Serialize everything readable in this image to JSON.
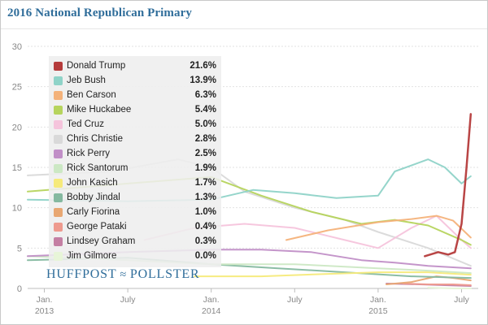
{
  "title": "2016 National Republican Primary",
  "brand": {
    "left": "HUFFPOST",
    "icon": "pollster-swoosh-icon",
    "right": "POLLSTER"
  },
  "chart_data": {
    "type": "line",
    "title": "2016 National Republican Primary",
    "xlabel": "",
    "ylabel": "",
    "ylim": [
      0,
      30
    ],
    "yticks": [
      "0",
      "5",
      "10",
      "15",
      "20",
      "25",
      "30"
    ],
    "xlim": [
      2012.9,
      2015.6
    ],
    "xticks": [
      {
        "x": 2013.0,
        "line1": "Jan.",
        "line2": "2013"
      },
      {
        "x": 2013.5,
        "line1": "July",
        "line2": ""
      },
      {
        "x": 2014.0,
        "line1": "Jan.",
        "line2": "2014"
      },
      {
        "x": 2014.5,
        "line1": "July",
        "line2": ""
      },
      {
        "x": 2015.0,
        "line1": "Jan.",
        "line2": "2015"
      },
      {
        "x": 2015.5,
        "line1": "July",
        "line2": ""
      }
    ],
    "series": [
      {
        "name": "Donald Trump",
        "label": "21.6%",
        "color": "#b53b3b",
        "x": [
          2015.28,
          2015.36,
          2015.42,
          2015.46,
          2015.5,
          2015.53,
          2015.555
        ],
        "y": [
          4.0,
          4.5,
          4.2,
          4.5,
          8.0,
          15.0,
          21.6
        ]
      },
      {
        "name": "Jeb Bush",
        "label": "13.9%",
        "color": "#8fd3c8",
        "x": [
          2012.9,
          2013.5,
          2014.0,
          2014.25,
          2014.5,
          2014.75,
          2015.0,
          2015.1,
          2015.3,
          2015.4,
          2015.5,
          2015.555
        ],
        "y": [
          11.0,
          10.8,
          11.0,
          12.2,
          11.8,
          11.2,
          11.5,
          14.5,
          16.0,
          15.0,
          13.0,
          13.9
        ]
      },
      {
        "name": "Ben Carson",
        "label": "6.3%",
        "color": "#f4b27a",
        "x": [
          2014.45,
          2014.7,
          2015.0,
          2015.2,
          2015.35,
          2015.45,
          2015.555
        ],
        "y": [
          6.0,
          7.2,
          8.2,
          8.6,
          9.0,
          8.4,
          6.3
        ]
      },
      {
        "name": "Mike Huckabee",
        "label": "5.4%",
        "color": "#b6d45d",
        "x": [
          2012.9,
          2013.5,
          2014.0,
          2014.3,
          2014.6,
          2014.9,
          2015.1,
          2015.3,
          2015.5,
          2015.555
        ],
        "y": [
          12.0,
          13.0,
          13.8,
          11.5,
          9.5,
          8.0,
          8.5,
          7.8,
          6.0,
          5.4
        ]
      },
      {
        "name": "Ted Cruz",
        "label": "5.0%",
        "color": "#f5c4dc",
        "x": [
          2013.6,
          2013.9,
          2014.2,
          2014.5,
          2014.8,
          2015.0,
          2015.2,
          2015.35,
          2015.5,
          2015.555
        ],
        "y": [
          6.0,
          7.5,
          8.0,
          7.5,
          6.0,
          5.0,
          7.5,
          9.0,
          6.0,
          5.0
        ]
      },
      {
        "name": "Chris Christie",
        "label": "2.8%",
        "color": "#d9d9d9",
        "x": [
          2012.9,
          2013.4,
          2013.8,
          2014.0,
          2014.2,
          2014.5,
          2014.8,
          2015.0,
          2015.3,
          2015.555
        ],
        "y": [
          14.0,
          14.5,
          16.0,
          15.0,
          12.0,
          10.0,
          8.5,
          7.0,
          5.0,
          2.8
        ]
      },
      {
        "name": "Rick Perry",
        "label": "2.5%",
        "color": "#c18fc7",
        "x": [
          2012.9,
          2013.5,
          2014.0,
          2014.3,
          2014.6,
          2014.9,
          2015.1,
          2015.3,
          2015.555
        ],
        "y": [
          4.0,
          4.5,
          4.8,
          4.8,
          4.5,
          3.5,
          3.2,
          2.8,
          2.5
        ]
      },
      {
        "name": "Rick Santorum",
        "label": "1.9%",
        "color": "#cce8c4",
        "x": [
          2012.9,
          2013.5,
          2014.0,
          2014.5,
          2015.0,
          2015.3,
          2015.555
        ],
        "y": [
          4.0,
          3.5,
          3.0,
          3.0,
          2.5,
          2.2,
          1.9
        ]
      },
      {
        "name": "John Kasich",
        "label": "1.7%",
        "color": "#f6ea7a",
        "x": [
          2013.9,
          2014.3,
          2014.7,
          2015.0,
          2015.3,
          2015.555
        ],
        "y": [
          1.5,
          1.5,
          1.8,
          2.0,
          2.0,
          1.7
        ]
      },
      {
        "name": "Bobby Jindal",
        "label": "1.3%",
        "color": "#85b9a0",
        "x": [
          2012.9,
          2013.5,
          2014.0,
          2014.4,
          2014.8,
          2015.2,
          2015.555
        ],
        "y": [
          3.5,
          3.8,
          3.0,
          2.5,
          2.0,
          1.5,
          1.3
        ]
      },
      {
        "name": "Carly Fiorina",
        "label": "1.0%",
        "color": "#e8a772",
        "x": [
          2015.05,
          2015.2,
          2015.35,
          2015.45,
          2015.555
        ],
        "y": [
          0.5,
          0.8,
          1.5,
          1.3,
          1.0
        ]
      },
      {
        "name": "George Pataki",
        "label": "0.4%",
        "color": "#ee9a8e",
        "x": [
          2015.15,
          2015.3,
          2015.45,
          2015.555
        ],
        "y": [
          0.6,
          0.5,
          0.5,
          0.4
        ]
      },
      {
        "name": "Lindsey Graham",
        "label": "0.3%",
        "color": "#c47fa3",
        "x": [
          2015.05,
          2015.25,
          2015.4,
          2015.555
        ],
        "y": [
          0.6,
          0.5,
          0.4,
          0.3
        ]
      },
      {
        "name": "Jim Gilmore",
        "label": "0.0%",
        "color": "#e7f5d8",
        "x": [
          2015.3,
          2015.45,
          2015.555
        ],
        "y": [
          0.1,
          0.0,
          0.0
        ]
      }
    ]
  }
}
